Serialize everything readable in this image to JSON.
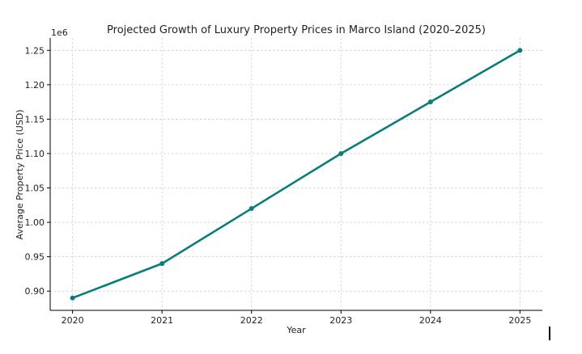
{
  "chart_data": {
    "type": "line",
    "title": "Projected Growth of Luxury Property Prices in Marco Island (2020–2025)",
    "xlabel": "Year",
    "ylabel": "Average Property Price (USD)",
    "y_offset_label": "1e6",
    "x": [
      2020,
      2021,
      2022,
      2023,
      2024,
      2025
    ],
    "x_tick_labels": [
      "2020",
      "2021",
      "2022",
      "2023",
      "2024",
      "2025"
    ],
    "series": [
      {
        "values": [
          890000,
          940000,
          1020000,
          1100000,
          1175000,
          1250000
        ],
        "color": "#0a7d7a",
        "marker": "circle"
      }
    ],
    "y_ticks": [
      0.9,
      0.95,
      1.0,
      1.05,
      1.1,
      1.15,
      1.2,
      1.25
    ],
    "y_tick_labels": [
      "0.90",
      "0.95",
      "1.00",
      "1.05",
      "1.10",
      "1.15",
      "1.20",
      "1.25"
    ],
    "y_tick_multiplier": 1000000,
    "xlim": [
      2019.75,
      2025.25
    ],
    "ylim": [
      872000,
      1268000
    ],
    "grid": true,
    "grid_style": "dashed"
  }
}
